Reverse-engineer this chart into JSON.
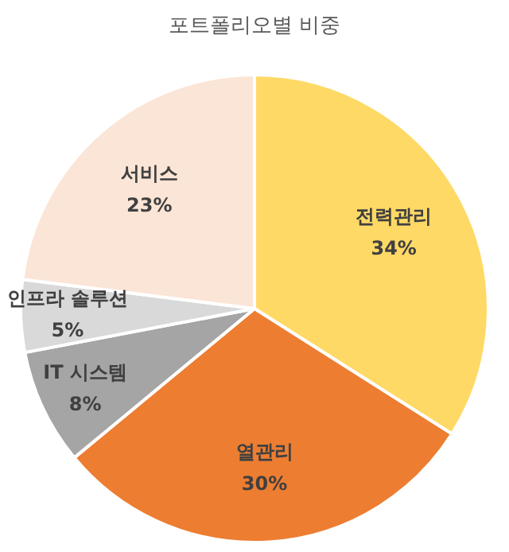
{
  "chart_data": {
    "type": "pie",
    "title": "포트폴리오별 비중",
    "categories": [
      "전력관리",
      "열관리",
      "IT 시스템",
      "인프라 솔루션",
      "서비스"
    ],
    "values": [
      34,
      30,
      8,
      5,
      23
    ],
    "value_labels": [
      "34%",
      "30%",
      "8%",
      "5%",
      "23%"
    ],
    "colors": [
      "#ffd966",
      "#ed7d31",
      "#a5a5a5",
      "#d9d9d9",
      "#fbe5d6"
    ]
  }
}
